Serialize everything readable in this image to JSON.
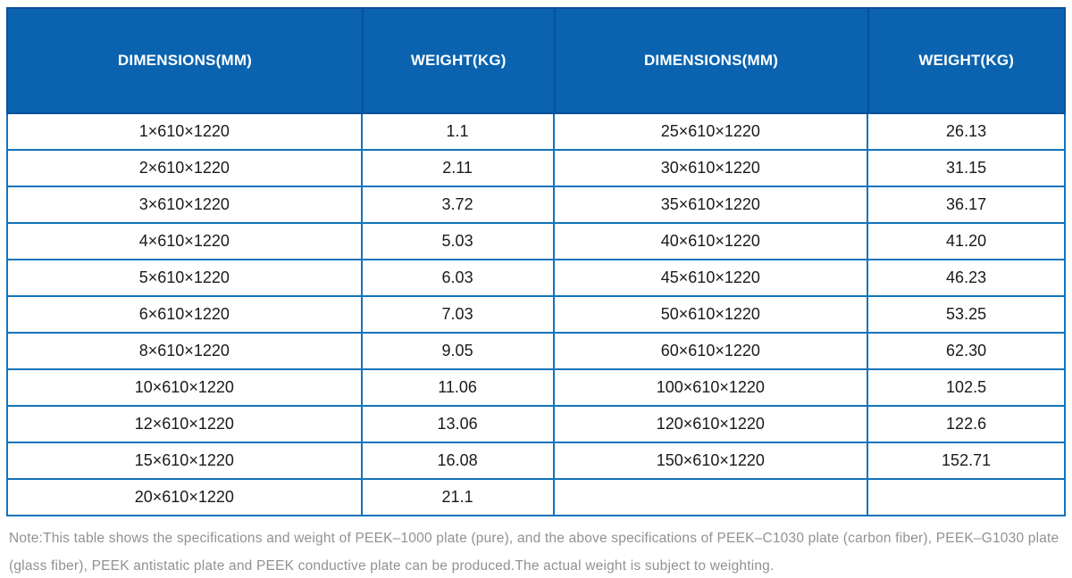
{
  "colors": {
    "header-bg": "#0b63af",
    "header-line": "#094f9c",
    "row-line": "#1273bb",
    "cell-text": "#1a1a1a",
    "note-text": "#8f9294"
  },
  "table": {
    "header": [
      "DIMENSIONS(MM)",
      "WEIGHT(KG)",
      "DIMENSIONS(MM)",
      "WEIGHT(KG)"
    ],
    "rows": [
      [
        "1×610×1220",
        "1.1",
        "25×610×1220",
        "26.13"
      ],
      [
        "2×610×1220",
        "2.11",
        "30×610×1220",
        "31.15"
      ],
      [
        "3×610×1220",
        "3.72",
        "35×610×1220",
        "36.17"
      ],
      [
        "4×610×1220",
        "5.03",
        "40×610×1220",
        "41.20"
      ],
      [
        "5×610×1220",
        "6.03",
        "45×610×1220",
        "46.23"
      ],
      [
        "6×610×1220",
        "7.03",
        "50×610×1220",
        "53.25"
      ],
      [
        "8×610×1220",
        "9.05",
        "60×610×1220",
        "62.30"
      ],
      [
        "10×610×1220",
        "11.06",
        "100×610×1220",
        "102.5"
      ],
      [
        "12×610×1220",
        "13.06",
        "120×610×1220",
        "122.6"
      ],
      [
        "15×610×1220",
        "16.08",
        "150×610×1220",
        "152.71"
      ],
      [
        "20×610×1220",
        "21.1",
        "",
        ""
      ]
    ]
  },
  "note": {
    "text": "Note:This table shows the specifications and weight of PEEK–1000 plate (pure), and the above specifications of PEEK–C1030 plate (carbon fiber), PEEK–G1030 plate (glass fiber), PEEK antistatic plate and PEEK conductive plate can be produced.The actual weight is subject to weighting."
  }
}
